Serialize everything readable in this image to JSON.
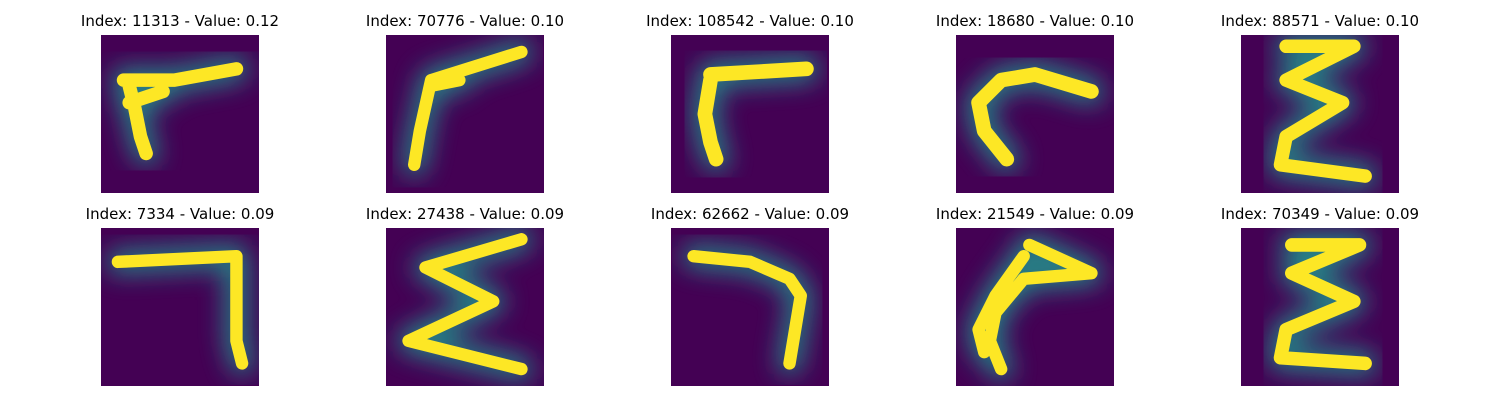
{
  "figure": {
    "colormap_background": "#440154",
    "colormap_mid": "#21918c",
    "colormap_high": "#fde725",
    "rows": [
      [
        {
          "title": "Index: 11313 - Value: 0.12",
          "glyph": "handwritten-character"
        },
        {
          "title": "Index: 70776 - Value: 0.10",
          "glyph": "handwritten-character"
        },
        {
          "title": "Index: 108542 - Value: 0.10",
          "glyph": "handwritten-character"
        },
        {
          "title": "Index: 18680 - Value: 0.10",
          "glyph": "handwritten-character"
        },
        {
          "title": "Index: 88571 - Value: 0.10",
          "glyph": "handwritten-character"
        }
      ],
      [
        {
          "title": "Index: 7334 - Value: 0.09",
          "glyph": "handwritten-character"
        },
        {
          "title": "Index: 27438 - Value: 0.09",
          "glyph": "handwritten-character"
        },
        {
          "title": "Index: 62662 - Value: 0.09",
          "glyph": "handwritten-character"
        },
        {
          "title": "Index: 21549 - Value: 0.09",
          "glyph": "handwritten-character"
        },
        {
          "title": "Index: 70349 - Value: 0.09",
          "glyph": "handwritten-character"
        }
      ]
    ]
  }
}
